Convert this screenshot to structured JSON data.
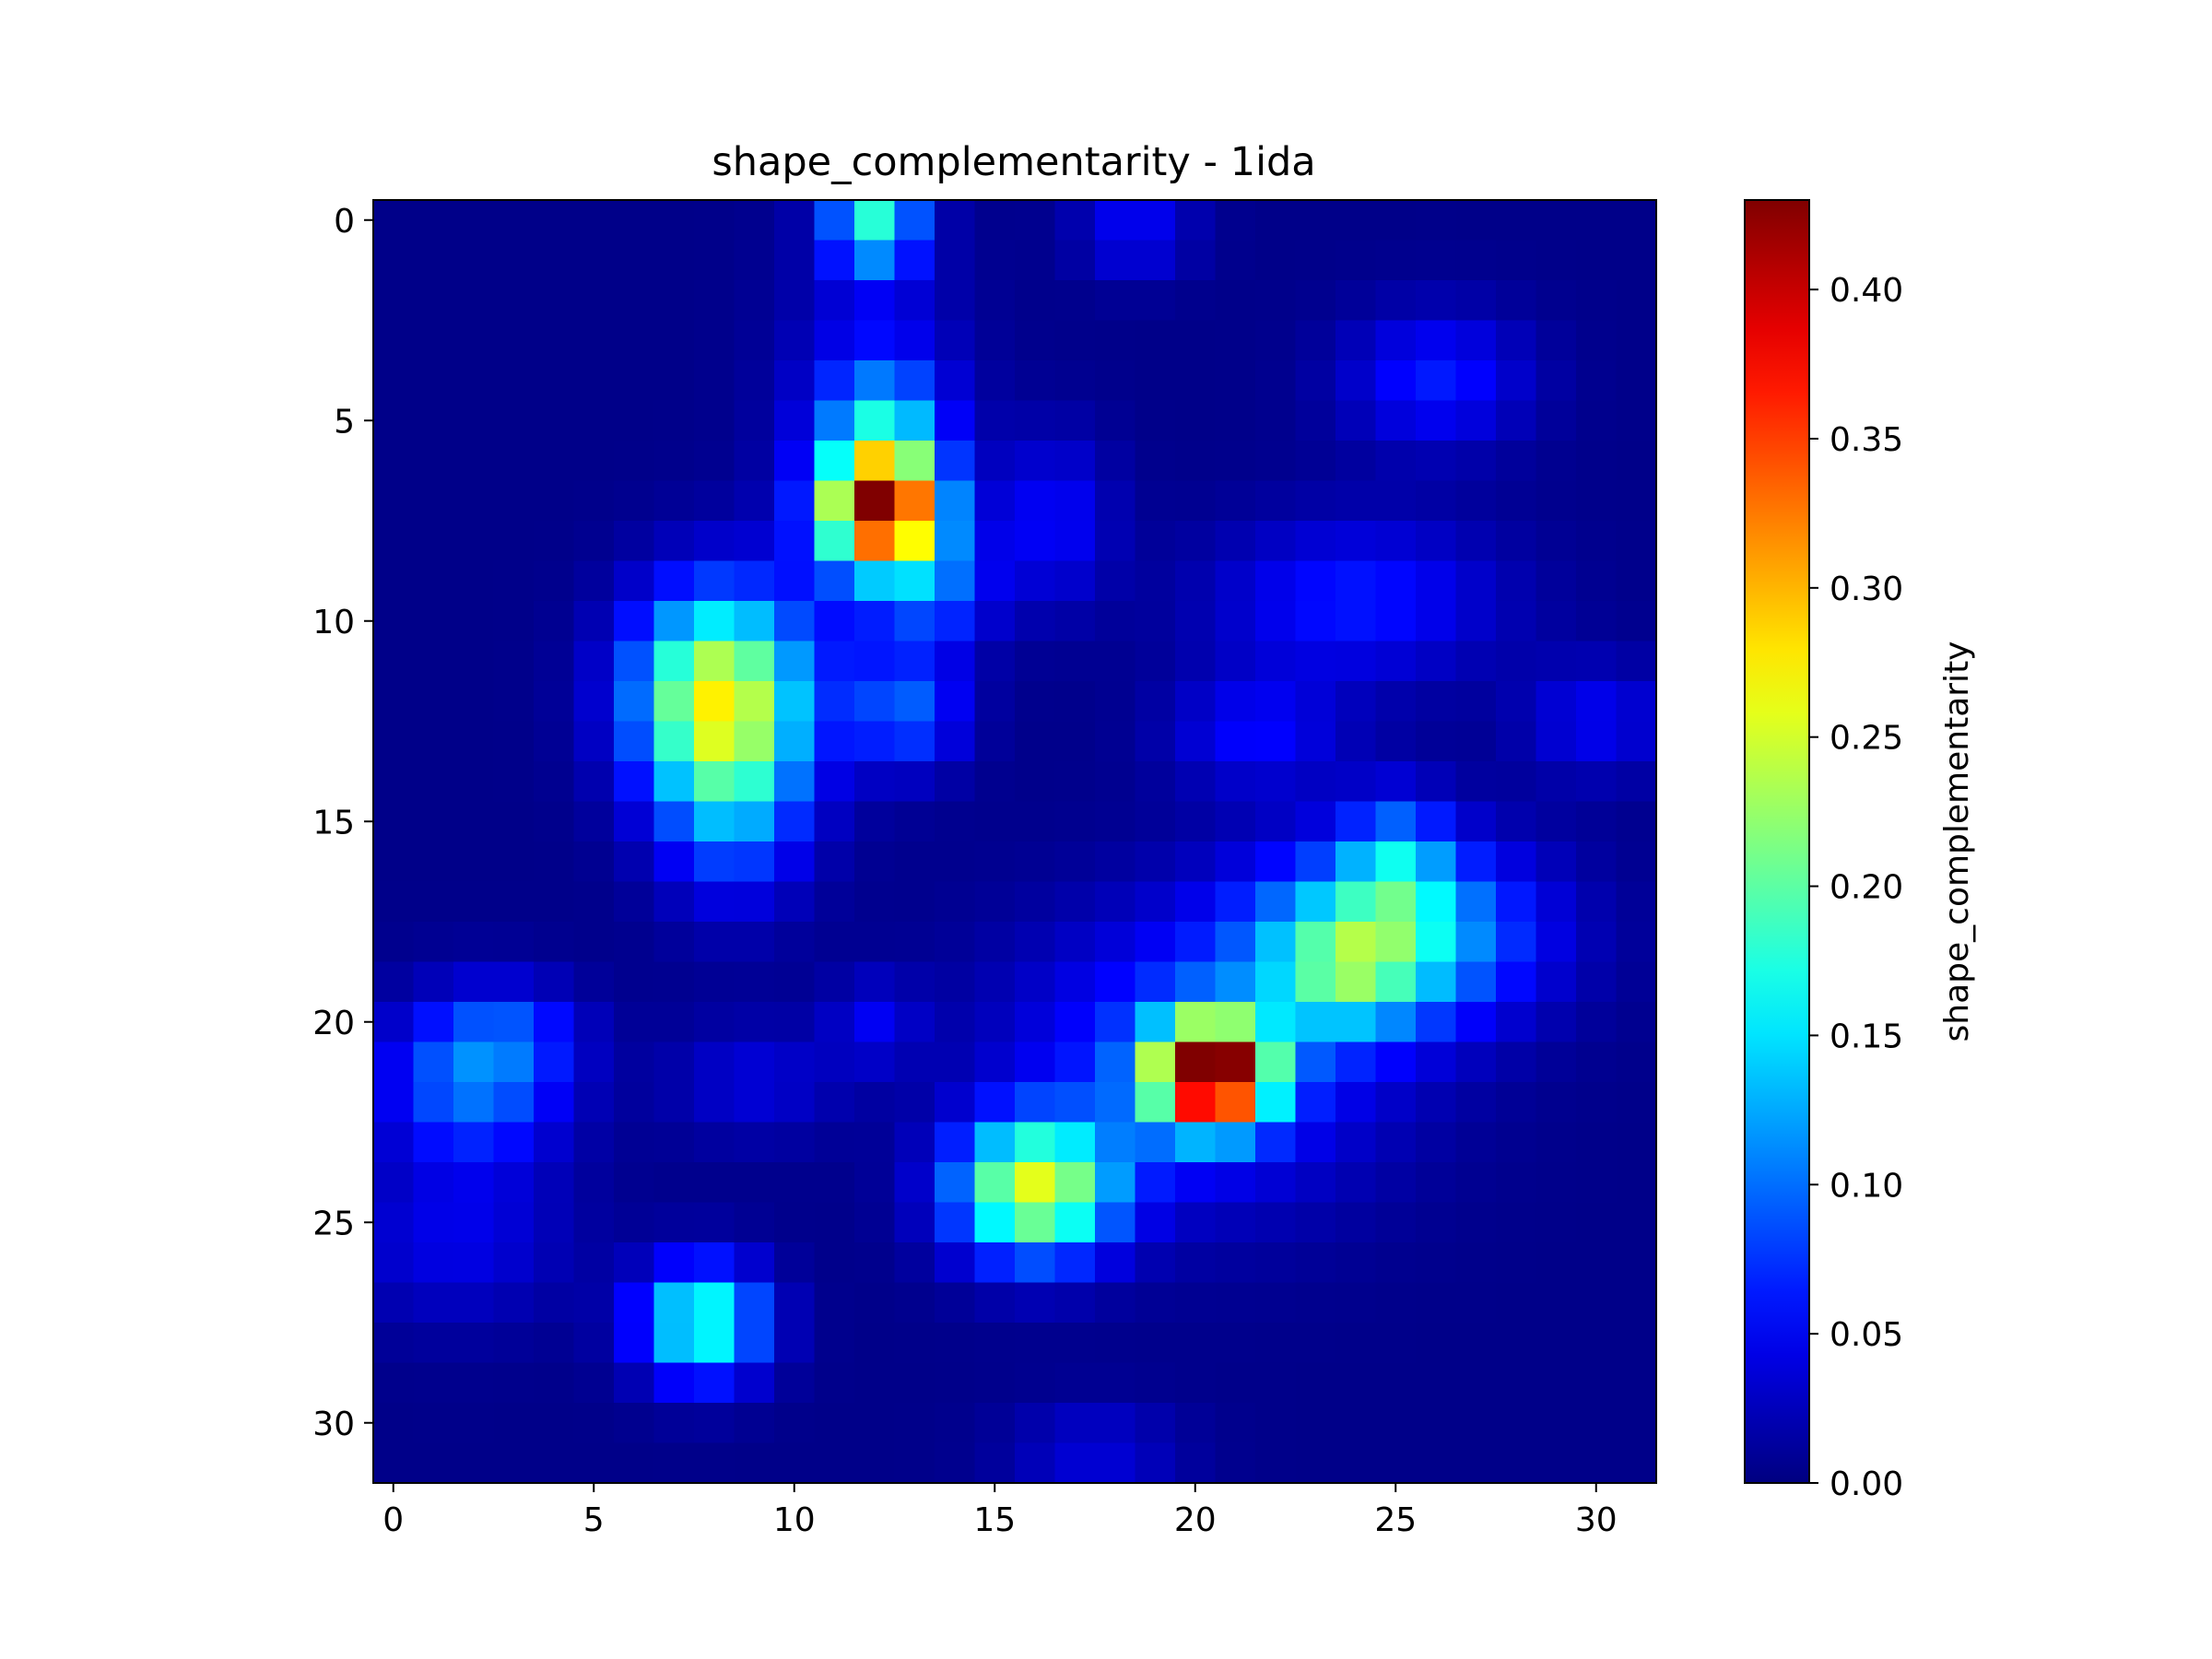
{
  "chart_data": {
    "type": "heatmap",
    "title": "shape_complementarity - 1ida",
    "xlabel": "",
    "ylabel": "",
    "colorbar_label": "shape_complementarity",
    "colormap": "jet",
    "vmin": 0.0,
    "vmax": 0.43,
    "x_ticks": [
      0,
      5,
      10,
      15,
      20,
      25,
      30
    ],
    "y_ticks": [
      0,
      5,
      10,
      15,
      20,
      25,
      30
    ],
    "colorbar_ticks": [
      "0.00",
      "0.05",
      "0.10",
      "0.15",
      "0.20",
      "0.25",
      "0.30",
      "0.35",
      "0.40"
    ],
    "colorbar_tick_values": [
      0.0,
      0.05,
      0.1,
      0.15,
      0.2,
      0.25,
      0.3,
      0.35,
      0.4
    ],
    "rows": 32,
    "cols": 32,
    "peaks": [
      {
        "row": 21.3,
        "col": 20.4,
        "value": 0.43,
        "sx": 1.0,
        "sy": 0.9
      },
      {
        "row": 21.0,
        "col": 20.0,
        "value": 0.08,
        "sx": 3.2,
        "sy": 2.4
      },
      {
        "row": 7.2,
        "col": 12.2,
        "value": 0.37,
        "sx": 1.0,
        "sy": 1.0
      },
      {
        "row": 6.0,
        "col": 12.0,
        "value": 0.06,
        "sx": 1.5,
        "sy": 3.5
      },
      {
        "row": 11.8,
        "col": 8.1,
        "value": 0.24,
        "sx": 1.5,
        "sy": 1.8
      },
      {
        "row": 24.2,
        "col": 16.0,
        "value": 0.24,
        "sx": 1.4,
        "sy": 1.2
      },
      {
        "row": 17.8,
        "col": 24.8,
        "value": 0.15,
        "sx": 2.5,
        "sy": 1.6
      },
      {
        "row": 18.8,
        "col": 23.8,
        "value": 0.09,
        "sx": 1.2,
        "sy": 1.0
      },
      {
        "row": 16.0,
        "col": 25.0,
        "value": 0.08,
        "sx": 0.9,
        "sy": 1.2
      },
      {
        "row": 27.5,
        "col": 7.7,
        "value": 0.18,
        "sx": 1.1,
        "sy": 1.0
      },
      {
        "row": 0.0,
        "col": 12.0,
        "value": 0.16,
        "sx": 0.8,
        "sy": 0.9
      },
      {
        "row": 5.0,
        "col": 12.2,
        "value": 0.08,
        "sx": 1.0,
        "sy": 1.0
      },
      {
        "row": 12.3,
        "col": 12.8,
        "value": 0.08,
        "sx": 1.0,
        "sy": 1.0
      },
      {
        "row": 9.2,
        "col": 13.6,
        "value": 0.07,
        "sx": 1.0,
        "sy": 1.0
      },
      {
        "row": 21.5,
        "col": 2.0,
        "value": 0.1,
        "sx": 1.6,
        "sy": 1.4
      },
      {
        "row": 14.5,
        "col": 8.5,
        "value": 0.09,
        "sx": 1.3,
        "sy": 1.8
      },
      {
        "row": 9.5,
        "col": 24.0,
        "value": 0.06,
        "sx": 2.5,
        "sy": 1.4
      },
      {
        "row": 4.0,
        "col": 26.0,
        "value": 0.06,
        "sx": 1.6,
        "sy": 1.2
      },
      {
        "row": 0.3,
        "col": 18.5,
        "value": 0.05,
        "sx": 1.0,
        "sy": 0.8
      },
      {
        "row": 12.8,
        "col": 21.5,
        "value": 0.05,
        "sx": 1.5,
        "sy": 1.0
      },
      {
        "row": 12.5,
        "col": 30.0,
        "value": 0.045,
        "sx": 1.3,
        "sy": 1.0
      },
      {
        "row": 7.5,
        "col": 16.5,
        "value": 0.05,
        "sx": 1.0,
        "sy": 1.5
      },
      {
        "row": 20.2,
        "col": 3.0,
        "value": 0.04,
        "sx": 1.2,
        "sy": 0.8
      },
      {
        "row": 25.5,
        "col": 1.5,
        "value": 0.04,
        "sx": 2.0,
        "sy": 1.4
      },
      {
        "row": 30.7,
        "col": 17.5,
        "value": 0.035,
        "sx": 1.5,
        "sy": 0.8
      },
      {
        "row": 21.5,
        "col": 9.0,
        "value": 0.035,
        "sx": 1.5,
        "sy": 1.0
      },
      {
        "row": 20.0,
        "col": 12.0,
        "value": 0.04,
        "sx": 0.8,
        "sy": 0.8
      }
    ]
  }
}
